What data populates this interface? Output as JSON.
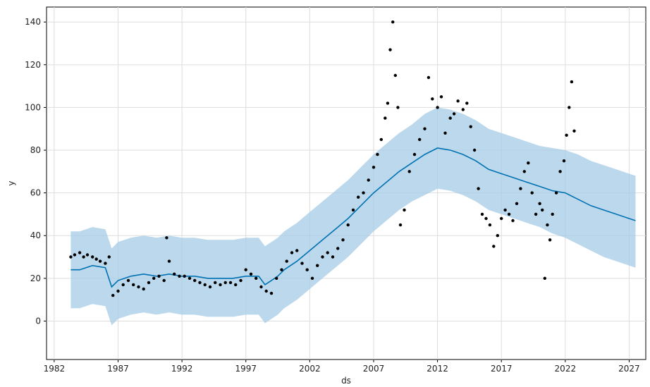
{
  "chart_data": {
    "type": "line",
    "title": "",
    "xlabel": "ds",
    "ylabel": "y",
    "xlim": [
      1981.4,
      2028.3
    ],
    "ylim": [
      -18,
      147
    ],
    "grid": true,
    "x_ticks": [
      1982,
      1987,
      1992,
      1997,
      2002,
      2007,
      2012,
      2017,
      2022,
      2027
    ],
    "y_ticks": [
      0,
      20,
      40,
      60,
      80,
      100,
      120,
      140
    ],
    "colors": {
      "forecast": "#0072B2",
      "band": "#a6cbe6",
      "observed": "#000000",
      "grid": "#dddddd"
    },
    "forecast": {
      "x": [
        1983.3,
        1984.0,
        1985.0,
        1986.0,
        1986.5,
        1987.0,
        1988.0,
        1989.0,
        1990.0,
        1991.0,
        1992.0,
        1993.0,
        1994.0,
        1995.0,
        1996.0,
        1997.0,
        1998.0,
        1998.5,
        1999.0,
        1999.5,
        2000.0,
        2001.0,
        2002.0,
        2003.0,
        2004.0,
        2005.0,
        2006.0,
        2007.0,
        2008.0,
        2009.0,
        2010.0,
        2011.0,
        2012.0,
        2013.0,
        2014.0,
        2015.0,
        2016.0,
        2017.0,
        2018.0,
        2019.0,
        2020.0,
        2021.0,
        2022.0,
        2023.0,
        2024.0,
        2025.0,
        2026.0,
        2027.0,
        2027.5
      ],
      "yhat": [
        24,
        24,
        26,
        25,
        16,
        19,
        21,
        22,
        21,
        22,
        21,
        21,
        20,
        20,
        20,
        21,
        21,
        17,
        19,
        21,
        24,
        28,
        33,
        38,
        43,
        48,
        54,
        60,
        65,
        70,
        74,
        78,
        81,
        80,
        78,
        75,
        71,
        69,
        67,
        65,
        63,
        61,
        60,
        57,
        54,
        52,
        50,
        48,
        47
      ],
      "lower": [
        6,
        6,
        8,
        7,
        -2,
        1,
        3,
        4,
        3,
        4,
        3,
        3,
        2,
        2,
        2,
        3,
        3,
        -1,
        1,
        3,
        6,
        10,
        15,
        20,
        25,
        30,
        36,
        42,
        47,
        52,
        56,
        59,
        62,
        61,
        59,
        56,
        52,
        50,
        48,
        46,
        44,
        41,
        39,
        36,
        33,
        30,
        28,
        26,
        25
      ],
      "upper": [
        42,
        42,
        44,
        43,
        34,
        37,
        39,
        40,
        39,
        40,
        39,
        39,
        38,
        38,
        38,
        39,
        39,
        35,
        37,
        39,
        42,
        46,
        51,
        56,
        61,
        66,
        72,
        78,
        83,
        88,
        92,
        97,
        100,
        99,
        97,
        94,
        90,
        88,
        86,
        84,
        82,
        81,
        80,
        78,
        75,
        73,
        71,
        69,
        68
      ]
    },
    "observed": {
      "x": [
        1983.3,
        1983.6,
        1984.0,
        1984.3,
        1984.6,
        1985.0,
        1985.3,
        1985.6,
        1986.0,
        1986.3,
        1986.6,
        1987.0,
        1987.4,
        1987.8,
        1988.2,
        1988.6,
        1989.0,
        1989.4,
        1989.8,
        1990.2,
        1990.6,
        1990.8,
        1991.0,
        1991.4,
        1991.8,
        1992.2,
        1992.6,
        1993.0,
        1993.4,
        1993.8,
        1994.2,
        1994.6,
        1995.0,
        1995.4,
        1995.8,
        1996.2,
        1996.6,
        1997.0,
        1997.4,
        1997.8,
        1998.2,
        1998.6,
        1999.0,
        1999.4,
        1999.8,
        2000.2,
        2000.6,
        2001.0,
        2001.4,
        2001.8,
        2002.2,
        2002.6,
        2003.0,
        2003.4,
        2003.8,
        2004.2,
        2004.6,
        2005.0,
        2005.4,
        2005.8,
        2006.2,
        2006.6,
        2007.0,
        2007.3,
        2007.6,
        2007.9,
        2008.1,
        2008.3,
        2008.5,
        2008.7,
        2008.9,
        2009.1,
        2009.4,
        2009.8,
        2010.2,
        2010.6,
        2011.0,
        2011.3,
        2011.6,
        2012.0,
        2012.3,
        2012.6,
        2013.0,
        2013.3,
        2013.6,
        2014.0,
        2014.3,
        2014.6,
        2014.9,
        2015.2,
        2015.5,
        2015.8,
        2016.1,
        2016.4,
        2016.7,
        2017.0,
        2017.3,
        2017.6,
        2017.9,
        2018.2,
        2018.5,
        2018.8,
        2019.1,
        2019.4,
        2019.7,
        2020.0,
        2020.2,
        2020.4,
        2020.6,
        2020.8,
        2021.0,
        2021.3,
        2021.6,
        2021.9,
        2022.1,
        2022.3,
        2022.5,
        2022.7
      ],
      "y": [
        30,
        31,
        32,
        30,
        31,
        30,
        29,
        28,
        27,
        30,
        12,
        14,
        17,
        19,
        17,
        16,
        15,
        18,
        20,
        21,
        19,
        39,
        28,
        22,
        21,
        21,
        20,
        19,
        18,
        17,
        16,
        18,
        17,
        18,
        18,
        17,
        19,
        24,
        22,
        20,
        16,
        14,
        13,
        20,
        24,
        28,
        32,
        33,
        27,
        24,
        20,
        26,
        30,
        32,
        30,
        34,
        38,
        45,
        52,
        58,
        60,
        66,
        72,
        78,
        85,
        95,
        102,
        127,
        140,
        115,
        100,
        45,
        52,
        70,
        78,
        85,
        90,
        114,
        104,
        100,
        105,
        88,
        95,
        97,
        103,
        99,
        102,
        91,
        80,
        62,
        50,
        48,
        45,
        35,
        40,
        48,
        52,
        50,
        47,
        55,
        62,
        70,
        74,
        60,
        50,
        55,
        52,
        20,
        45,
        38,
        50,
        60,
        70,
        75,
        87,
        100,
        112,
        89
      ]
    }
  }
}
